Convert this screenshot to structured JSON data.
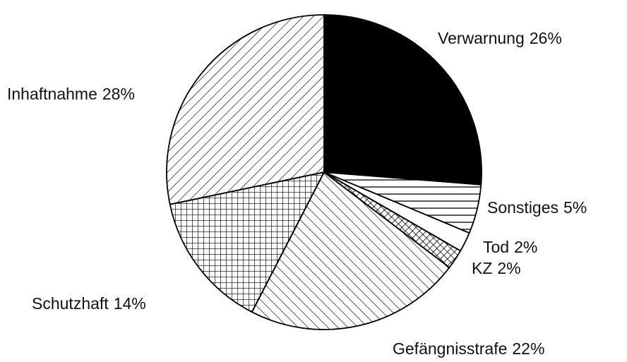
{
  "chart_data": {
    "type": "pie",
    "categories": [
      "Verwarnung",
      "Sonstiges",
      "Tod",
      "KZ",
      "Gefängnisstrafe",
      "Schutzhaft",
      "Inhaftnahme"
    ],
    "values": [
      26,
      5,
      2,
      2,
      22,
      14,
      28
    ],
    "value_labels": [
      "26%",
      "5%",
      "2%",
      "2%",
      "22%",
      "14%",
      "28%"
    ],
    "color": "#000000",
    "patterns": [
      "solid",
      "horizontal",
      "none",
      "crosshatch",
      "backslash",
      "grid",
      "slash"
    ],
    "start_angle": "top",
    "direction": "clockwise"
  }
}
